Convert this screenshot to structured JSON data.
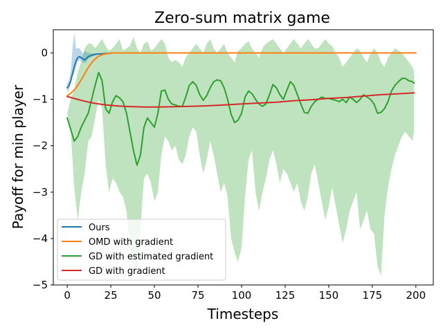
{
  "chart_data": {
    "type": "line",
    "title": "Zero-sum matrix game",
    "xlabel": "Timesteps",
    "ylabel": "Payoff for min player",
    "xlim": [
      -8,
      210
    ],
    "ylim": [
      -5,
      0.5
    ],
    "xticks": [
      0,
      25,
      50,
      75,
      100,
      125,
      150,
      175,
      200
    ],
    "yticks": [
      0,
      -1,
      -2,
      -3,
      -4,
      -5
    ],
    "xtick_labels": [
      "0",
      "25",
      "50",
      "75",
      "100",
      "125",
      "150",
      "175",
      "200"
    ],
    "ytick_labels": [
      "0",
      "−1",
      "−2",
      "−3",
      "−4",
      "−5"
    ],
    "grid": false,
    "legend_position": "lower-left",
    "series": [
      {
        "name": "Ours",
        "color": "#1f77b4",
        "x": [
          0,
          1,
          2,
          3,
          4,
          5,
          6,
          7,
          8,
          9,
          10,
          11,
          12,
          14,
          16,
          18,
          20,
          22,
          24,
          26,
          28,
          30,
          200
        ],
        "y": [
          -0.75,
          -0.7,
          -0.6,
          -0.45,
          -0.3,
          -0.18,
          -0.1,
          -0.08,
          -0.1,
          -0.13,
          -0.15,
          -0.12,
          -0.08,
          -0.05,
          -0.03,
          -0.02,
          -0.02,
          -0.01,
          -0.01,
          0,
          0,
          0,
          0
        ],
        "band_lower": [
          -0.85,
          -0.8,
          -0.65,
          -0.5,
          -0.45,
          -0.3,
          -0.2,
          -0.15,
          -0.18,
          -0.2,
          -0.22,
          -0.18,
          -0.12,
          -0.08,
          -0.05,
          -0.03,
          -0.03,
          -0.02,
          -0.01,
          0,
          0,
          0,
          0
        ],
        "band_upper": [
          -0.65,
          -0.6,
          -0.4,
          0.1,
          0.45,
          0.1,
          0.1,
          0.1,
          0.05,
          -0.02,
          0.05,
          0.02,
          0.0,
          -0.01,
          -0.01,
          -0.01,
          -0.01,
          0,
          0,
          0,
          0,
          0,
          0
        ]
      },
      {
        "name": "OMD with gradient",
        "color": "#ff7f0e",
        "x": [
          0,
          2,
          4,
          6,
          8,
          10,
          12,
          14,
          16,
          18,
          20,
          22,
          24,
          26,
          28,
          30,
          200
        ],
        "y": [
          -0.92,
          -0.87,
          -0.8,
          -0.7,
          -0.58,
          -0.45,
          -0.32,
          -0.21,
          -0.13,
          -0.07,
          -0.04,
          -0.02,
          -0.01,
          0,
          0,
          0,
          0
        ]
      },
      {
        "name": "GD with estimated gradient",
        "color": "#2ca02c",
        "x": [
          0,
          2,
          4,
          6,
          8,
          10,
          12,
          14,
          16,
          18,
          20,
          22,
          24,
          26,
          28,
          30,
          32,
          34,
          36,
          38,
          40,
          42,
          44,
          46,
          48,
          50,
          52,
          54,
          56,
          58,
          60,
          62,
          64,
          66,
          68,
          70,
          72,
          74,
          76,
          78,
          80,
          82,
          84,
          86,
          88,
          90,
          92,
          94,
          96,
          98,
          100,
          102,
          104,
          106,
          108,
          110,
          112,
          114,
          116,
          118,
          120,
          122,
          124,
          126,
          128,
          130,
          132,
          134,
          136,
          138,
          140,
          142,
          144,
          146,
          148,
          150,
          152,
          154,
          156,
          158,
          160,
          162,
          164,
          166,
          168,
          170,
          172,
          174,
          176,
          178,
          180,
          182,
          184,
          186,
          188,
          190,
          192,
          194,
          196,
          198,
          199
        ],
        "y": [
          -1.4,
          -1.65,
          -1.9,
          -1.8,
          -1.6,
          -1.45,
          -1.3,
          -1.0,
          -0.7,
          -0.42,
          -0.6,
          -1.2,
          -1.3,
          -1.05,
          -0.92,
          -0.97,
          -1.05,
          -1.3,
          -1.7,
          -2.1,
          -2.42,
          -2.2,
          -1.6,
          -1.4,
          -1.5,
          -1.6,
          -1.3,
          -0.82,
          -0.8,
          -1.0,
          -1.1,
          -1.12,
          -1.15,
          -1.15,
          -0.95,
          -0.7,
          -0.62,
          -0.7,
          -0.9,
          -1.02,
          -0.92,
          -0.75,
          -0.62,
          -0.58,
          -0.6,
          -0.75,
          -1.0,
          -1.32,
          -1.5,
          -1.45,
          -1.3,
          -0.95,
          -0.82,
          -0.88,
          -1.0,
          -1.1,
          -1.15,
          -1.1,
          -0.9,
          -0.68,
          -0.75,
          -0.9,
          -1.0,
          -0.8,
          -0.62,
          -0.7,
          -0.9,
          -1.1,
          -1.28,
          -1.3,
          -1.15,
          -1.05,
          -1.0,
          -0.95,
          -0.98,
          -0.98,
          -1.0,
          -1.02,
          -1.05,
          -1.0,
          -1.07,
          -0.95,
          -1.0,
          -1.07,
          -1.0,
          -0.9,
          -0.95,
          -1.0,
          -1.1,
          -1.3,
          -1.28,
          -1.2,
          -1.05,
          -0.82,
          -0.7,
          -0.62,
          -0.55,
          -0.55,
          -0.6,
          -0.62,
          -0.65
        ],
        "band_lower": [
          -1.3,
          -1.7,
          -2.9,
          -3.6,
          -3.0,
          -2.6,
          -1.9,
          -1.8,
          -1.4,
          -1.0,
          -1.2,
          -2.4,
          -3.0,
          -2.7,
          -2.8,
          -3.0,
          -3.1,
          -3.4,
          -4.2,
          -4.9,
          -4.6,
          -3.8,
          -2.7,
          -2.6,
          -2.8,
          -3.2,
          -3.0,
          -2.2,
          -1.8,
          -1.9,
          -2.1,
          -2.0,
          -2.3,
          -2.4,
          -2.2,
          -1.8,
          -1.6,
          -1.7,
          -2.2,
          -2.6,
          -2.3,
          -1.9,
          -2.2,
          -2.6,
          -3.0,
          -2.8,
          -3.1,
          -4.0,
          -4.3,
          -4.5,
          -4.2,
          -3.1,
          -2.3,
          -2.1,
          -3.0,
          -3.4,
          -3.0,
          -2.7,
          -2.3,
          -2.1,
          -2.4,
          -2.8,
          -2.5,
          -2.6,
          -2.8,
          -3.0,
          -2.8,
          -3.2,
          -3.4,
          -3.1,
          -2.6,
          -2.4,
          -2.8,
          -3.2,
          -3.6,
          -3.3,
          -2.9,
          -3.3,
          -3.7,
          -4.1,
          -3.8,
          -3.4,
          -3.2,
          -3.0,
          -3.8,
          -3.6,
          -3.4,
          -3.8,
          -3.9,
          -4.6,
          -4.8,
          -3.5,
          -2.9,
          -2.5,
          -2.2,
          -2.0,
          -1.8,
          -1.7,
          -1.8,
          -1.9,
          -1.7
        ],
        "band_upper": [
          -1.3,
          -1.0,
          -0.8,
          -0.4,
          -0.2,
          0.1,
          0.2,
          0.2,
          0.1,
          0.2,
          0.3,
          0.15,
          0.05,
          0.1,
          0.2,
          0.3,
          0.05,
          0.1,
          0.15,
          0.35,
          0.1,
          0.0,
          0.2,
          0.25,
          0.05,
          0.1,
          0.2,
          0.3,
          0.2,
          -0.1,
          -0.2,
          -0.15,
          -0.2,
          -0.3,
          -0.1,
          0.0,
          0.1,
          0.2,
          0.1,
          0.0,
          0.2,
          0.3,
          0.1,
          0.0,
          0.1,
          0.2,
          0.0,
          -0.1,
          -0.2,
          0.05,
          0.1,
          0.2,
          0.25,
          0.1,
          0.0,
          -0.1,
          0.1,
          0.2,
          0.25,
          0.3,
          0.2,
          0.1,
          0.0,
          0.1,
          0.2,
          0.3,
          0.2,
          0.1,
          0.2,
          0.3,
          0.2,
          0.1,
          0.1,
          0.2,
          0.3,
          0.2,
          0.15,
          0.0,
          -0.1,
          -0.3,
          -0.2,
          -0.1,
          0.0,
          0.1,
          0.05,
          -0.1,
          -0.2,
          0.0,
          0.1,
          0.0,
          -0.2,
          -0.3,
          -0.1,
          0.0,
          0.1,
          0.05,
          0.0,
          -0.1,
          -0.2,
          -0.3,
          -0.4
        ]
      },
      {
        "name": "GD with gradient",
        "color": "#d62728",
        "x": [
          0,
          5,
          10,
          15,
          20,
          25,
          30,
          35,
          40,
          45,
          50,
          60,
          70,
          80,
          90,
          100,
          110,
          120,
          130,
          140,
          150,
          160,
          170,
          180,
          190,
          199
        ],
        "y": [
          -0.94,
          -0.99,
          -1.04,
          -1.08,
          -1.11,
          -1.13,
          -1.145,
          -1.155,
          -1.16,
          -1.165,
          -1.165,
          -1.16,
          -1.15,
          -1.14,
          -1.12,
          -1.1,
          -1.08,
          -1.06,
          -1.03,
          -1.01,
          -0.98,
          -0.96,
          -0.93,
          -0.9,
          -0.88,
          -0.86
        ]
      }
    ]
  }
}
